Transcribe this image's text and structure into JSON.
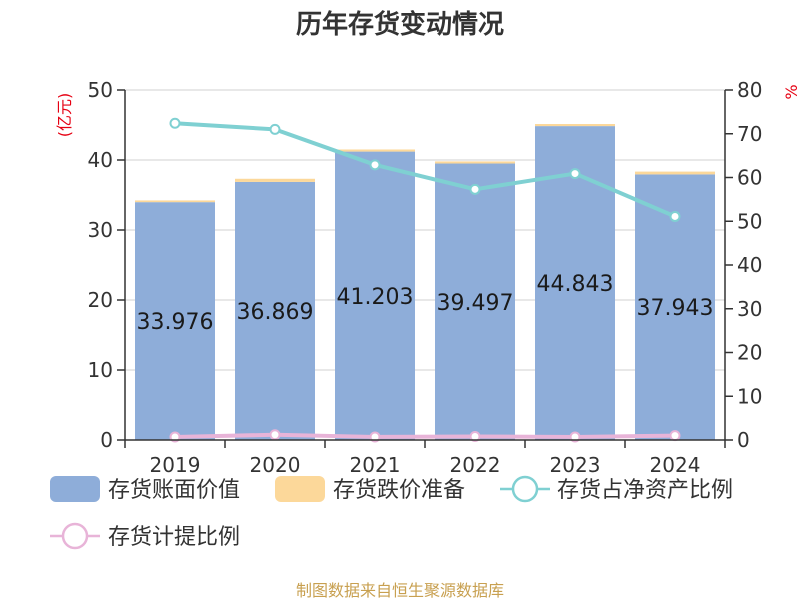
{
  "chart_data": {
    "type": "bar",
    "title": "历年存货变动情况",
    "categories": [
      "2019",
      "2020",
      "2021",
      "2022",
      "2023",
      "2024"
    ],
    "y_left": {
      "unit": "(亿元)",
      "ylim": [
        0,
        50
      ],
      "ticks": [
        0,
        10,
        20,
        30,
        40,
        50
      ]
    },
    "y_right": {
      "unit": "%",
      "ylim": [
        0,
        80
      ],
      "ticks": [
        0,
        10,
        20,
        30,
        40,
        50,
        60,
        70,
        80
      ]
    },
    "series": [
      {
        "name": "存货账面价值",
        "kind": "bar",
        "axis": "left",
        "color": "#8eadd9",
        "values": [
          33.976,
          36.869,
          41.203,
          39.497,
          44.843,
          37.943
        ]
      },
      {
        "name": "存货跌价准备",
        "kind": "bar",
        "axis": "left",
        "stacked": true,
        "color": "#fcd89a",
        "values": [
          0.25,
          0.45,
          0.3,
          0.3,
          0.3,
          0.4
        ]
      },
      {
        "name": "存货占净资产比例",
        "kind": "line",
        "axis": "right",
        "color": "#7fd0d2",
        "values": [
          72.4,
          71.0,
          62.9,
          57.3,
          60.9,
          51.1
        ]
      },
      {
        "name": "存货计提比例",
        "kind": "line",
        "axis": "right",
        "color": "#e8b4d8",
        "values": [
          0.7,
          1.2,
          0.7,
          0.8,
          0.7,
          1.0
        ]
      }
    ],
    "data_labels": [
      "33.976",
      "36.869",
      "41.203",
      "39.497",
      "44.843",
      "37.943"
    ],
    "grid": true,
    "legend_position": "bottom"
  },
  "footer": {
    "source": "制图数据来自恒生聚源数据库"
  }
}
